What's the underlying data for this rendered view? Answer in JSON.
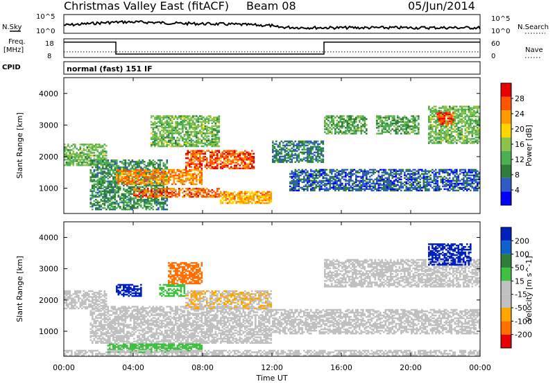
{
  "header": {
    "title": "Christmas Valley East (fitACF)",
    "beam": "Beam 08",
    "date": "05/Jun/2014"
  },
  "noise_panel": {
    "left_label": "N.Sky",
    "right_label": "N.Search",
    "left_ticks": [
      "10^5",
      "10^0"
    ],
    "right_ticks": [
      "10^5",
      "10^0"
    ]
  },
  "freq_panel": {
    "left_label_1": "Freq.",
    "left_label_2": "[MHz]",
    "right_label": "Nave",
    "left_ticks": [
      "18",
      "8"
    ],
    "right_ticks": [
      "60",
      "0"
    ],
    "freq_steps": [
      {
        "t0": 0,
        "t1": 3,
        "mhz": 16.8
      },
      {
        "t0": 3,
        "t1": 15,
        "mhz": 9.3
      },
      {
        "t0": 15,
        "t1": 24,
        "mhz": 16.8
      }
    ],
    "nave_level": 18
  },
  "cpid": {
    "label": "CPID",
    "mode": "normal (fast) 151 IF"
  },
  "x_axis": {
    "label": "Time UT",
    "ticks": [
      "00:00",
      "04:00",
      "08:00",
      "12:00",
      "16:00",
      "20:00",
      "00:00"
    ],
    "range_hours": [
      0,
      24
    ]
  },
  "colors": {
    "power_scale": [
      "#0000ff",
      "#2e5bc7",
      "#2e7d3a",
      "#4caf50",
      "#8bc34a",
      "#ffd400",
      "#ff9900",
      "#ff5500",
      "#e60000"
    ],
    "velocity_scale": [
      "#0020c0",
      "#1060d0",
      "#2e7d3a",
      "#40c040",
      "#c0c0c0",
      "#c0c0c0",
      "#ffa500",
      "#ff7000",
      "#e60000"
    ],
    "frame": "#000000"
  },
  "chart_data": [
    {
      "type": "heatmap",
      "ylabel": "Slant Range [km]",
      "ylim": [
        200,
        4500
      ],
      "y_ticks": [
        "1000",
        "2000",
        "3000",
        "4000"
      ],
      "xlabel": "Time UT",
      "colorbar": {
        "label": "Power [dB]",
        "ticks": [
          "4",
          "8",
          "12",
          "16",
          "20",
          "24",
          "28"
        ],
        "range": [
          0,
          32
        ]
      },
      "regions": [
        {
          "t0": 0.0,
          "t1": 2.5,
          "r0": 1700,
          "r1": 2400,
          "value": 14
        },
        {
          "t0": 1.5,
          "t1": 6.0,
          "r0": 300,
          "r1": 1900,
          "value": 10
        },
        {
          "t0": 3.0,
          "t1": 8.0,
          "r0": 1100,
          "r1": 1600,
          "value": 24
        },
        {
          "t0": 5.0,
          "t1": 9.0,
          "r0": 2300,
          "r1": 3300,
          "value": 14
        },
        {
          "t0": 7.0,
          "t1": 11.0,
          "r0": 1600,
          "r1": 2200,
          "value": 27
        },
        {
          "t0": 4.0,
          "t1": 9.0,
          "r0": 700,
          "r1": 1000,
          "value": 26
        },
        {
          "t0": 9.0,
          "t1": 12.0,
          "r0": 500,
          "r1": 900,
          "value": 22
        },
        {
          "t0": 12.0,
          "t1": 15.0,
          "r0": 1800,
          "r1": 2500,
          "value": 8
        },
        {
          "t0": 15.0,
          "t1": 17.5,
          "r0": 2700,
          "r1": 3300,
          "value": 12
        },
        {
          "t0": 18.0,
          "t1": 20.5,
          "r0": 2700,
          "r1": 3300,
          "value": 12
        },
        {
          "t0": 21.0,
          "t1": 24.0,
          "r0": 2400,
          "r1": 3600,
          "value": 14
        },
        {
          "t0": 21.5,
          "t1": 22.5,
          "r0": 3000,
          "r1": 3400,
          "value": 28
        },
        {
          "t0": 13.0,
          "t1": 24.0,
          "r0": 900,
          "r1": 1600,
          "value": 6
        }
      ]
    },
    {
      "type": "heatmap",
      "ylabel": "Slant Range [km]",
      "ylim": [
        200,
        4500
      ],
      "y_ticks": [
        "1000",
        "2000",
        "3000",
        "4000"
      ],
      "xlabel": "Time UT",
      "colorbar": {
        "label": "Velocity [m s^-1]",
        "ticks": [
          "200",
          "100",
          "50",
          "15",
          "-15",
          "-50",
          "-100",
          "-200"
        ],
        "range": [
          -250,
          250
        ]
      },
      "regions": [
        {
          "t0": 0.0,
          "t1": 2.5,
          "r0": 1700,
          "r1": 2300,
          "value": 0
        },
        {
          "t0": 1.5,
          "t1": 12.0,
          "r0": 600,
          "r1": 1800,
          "value": 0
        },
        {
          "t0": 3.0,
          "t1": 4.5,
          "r0": 2100,
          "r1": 2500,
          "value": 220
        },
        {
          "t0": 6.0,
          "t1": 8.0,
          "r0": 2500,
          "r1": 3200,
          "value": -170
        },
        {
          "t0": 7.0,
          "t1": 12.0,
          "r0": 1700,
          "r1": 2300,
          "value": -80
        },
        {
          "t0": 5.5,
          "t1": 7.0,
          "r0": 2100,
          "r1": 2500,
          "value": 60
        },
        {
          "t0": 2.5,
          "t1": 8.0,
          "r0": 300,
          "r1": 600,
          "value": 60
        },
        {
          "t0": 15.0,
          "t1": 24.0,
          "r0": 2400,
          "r1": 3300,
          "value": 0
        },
        {
          "t0": 12.0,
          "t1": 24.0,
          "r0": 900,
          "r1": 1700,
          "value": 0
        },
        {
          "t0": 21.0,
          "t1": 23.5,
          "r0": 3100,
          "r1": 3800,
          "value": 220
        },
        {
          "t0": 0.0,
          "t1": 24.0,
          "r0": 200,
          "r1": 400,
          "value": -60
        }
      ]
    }
  ]
}
